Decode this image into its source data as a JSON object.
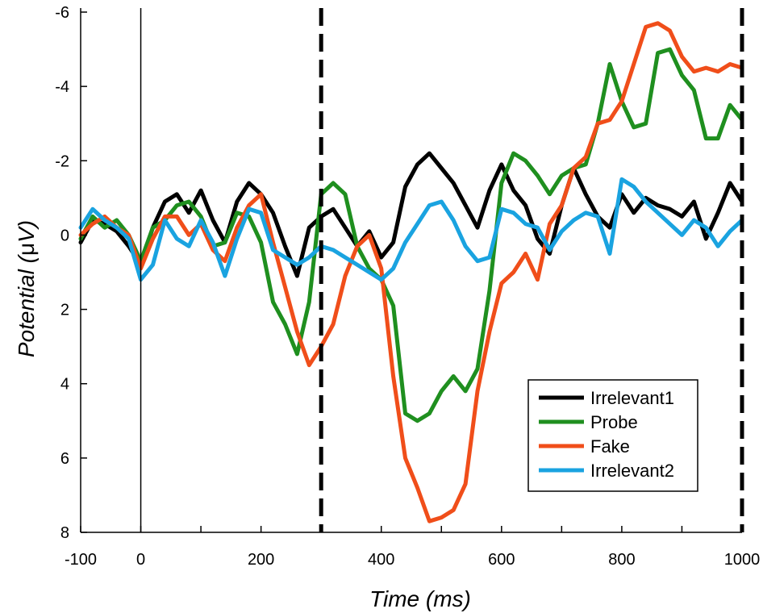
{
  "chart_data": {
    "type": "line",
    "xlabel": "Time (ms)",
    "ylabel_prefix": "Potential (",
    "ylabel_unit": "μ",
    "ylabel_suffix": "V)",
    "xlim": [
      -100,
      1000
    ],
    "ylim": [
      -6,
      8
    ],
    "y_inverted": true,
    "x_ticks": [
      -100,
      0,
      200,
      400,
      600,
      800,
      1000
    ],
    "x_minor_ticks": [
      100,
      300,
      500,
      700,
      900
    ],
    "y_ticks": [
      -6,
      -4,
      -2,
      0,
      2,
      4,
      6,
      8
    ],
    "y_tick_labels": [
      "-6",
      "-4",
      "-2",
      "0",
      "2",
      "4",
      "6",
      "8"
    ],
    "vertical_lines": [
      {
        "x": 0,
        "style": "solid"
      },
      {
        "x": 300,
        "style": "dashed"
      },
      {
        "x": 1000,
        "style": "dashed"
      }
    ],
    "legend_position": "bottom-right",
    "grid": false,
    "series": [
      {
        "name": "Irrelevant1",
        "color": "#000000",
        "points": [
          [
            -100,
            0.2
          ],
          [
            -80,
            -0.4
          ],
          [
            -60,
            -0.3
          ],
          [
            -40,
            -0.1
          ],
          [
            -20,
            0.3
          ],
          [
            0,
            0.8
          ],
          [
            20,
            -0.2
          ],
          [
            40,
            -0.9
          ],
          [
            60,
            -1.1
          ],
          [
            80,
            -0.6
          ],
          [
            100,
            -1.2
          ],
          [
            120,
            -0.4
          ],
          [
            140,
            0.2
          ],
          [
            160,
            -0.9
          ],
          [
            180,
            -1.4
          ],
          [
            200,
            -1.1
          ],
          [
            220,
            -0.6
          ],
          [
            240,
            0.3
          ],
          [
            260,
            1.1
          ],
          [
            280,
            -0.2
          ],
          [
            300,
            -0.5
          ],
          [
            320,
            -0.7
          ],
          [
            340,
            -0.2
          ],
          [
            360,
            0.3
          ],
          [
            380,
            -0.1
          ],
          [
            400,
            0.6
          ],
          [
            420,
            0.2
          ],
          [
            440,
            -1.3
          ],
          [
            460,
            -1.9
          ],
          [
            480,
            -2.2
          ],
          [
            500,
            -1.8
          ],
          [
            520,
            -1.4
          ],
          [
            540,
            -0.8
          ],
          [
            560,
            -0.2
          ],
          [
            580,
            -1.2
          ],
          [
            600,
            -1.9
          ],
          [
            620,
            -1.2
          ],
          [
            640,
            -0.8
          ],
          [
            660,
            0.1
          ],
          [
            680,
            0.5
          ],
          [
            700,
            -0.8
          ],
          [
            720,
            -1.8
          ],
          [
            740,
            -1.1
          ],
          [
            760,
            -0.5
          ],
          [
            780,
            -0.2
          ],
          [
            800,
            -1.1
          ],
          [
            820,
            -0.6
          ],
          [
            840,
            -1.0
          ],
          [
            860,
            -0.8
          ],
          [
            880,
            -0.7
          ],
          [
            900,
            -0.5
          ],
          [
            920,
            -0.9
          ],
          [
            940,
            0.1
          ],
          [
            960,
            -0.6
          ],
          [
            980,
            -1.4
          ],
          [
            1000,
            -0.9
          ]
        ]
      },
      {
        "name": "Probe",
        "color": "#1f8f1f",
        "points": [
          [
            -100,
            0.1
          ],
          [
            -80,
            -0.5
          ],
          [
            -60,
            -0.2
          ],
          [
            -40,
            -0.4
          ],
          [
            -20,
            0.0
          ],
          [
            0,
            0.7
          ],
          [
            20,
            -0.2
          ],
          [
            40,
            -0.4
          ],
          [
            60,
            -0.8
          ],
          [
            80,
            -0.9
          ],
          [
            100,
            -0.5
          ],
          [
            120,
            0.3
          ],
          [
            140,
            0.2
          ],
          [
            160,
            -0.6
          ],
          [
            180,
            -0.5
          ],
          [
            200,
            0.2
          ],
          [
            220,
            1.8
          ],
          [
            240,
            2.4
          ],
          [
            260,
            3.2
          ],
          [
            280,
            1.8
          ],
          [
            300,
            -1.1
          ],
          [
            320,
            -1.4
          ],
          [
            340,
            -1.1
          ],
          [
            360,
            0.3
          ],
          [
            380,
            0.9
          ],
          [
            400,
            1.2
          ],
          [
            420,
            1.9
          ],
          [
            440,
            4.8
          ],
          [
            460,
            5.0
          ],
          [
            480,
            4.8
          ],
          [
            500,
            4.2
          ],
          [
            520,
            3.8
          ],
          [
            540,
            4.2
          ],
          [
            560,
            3.6
          ],
          [
            580,
            1.5
          ],
          [
            600,
            -1.4
          ],
          [
            620,
            -2.2
          ],
          [
            640,
            -2.0
          ],
          [
            660,
            -1.6
          ],
          [
            680,
            -1.1
          ],
          [
            700,
            -1.6
          ],
          [
            720,
            -1.8
          ],
          [
            740,
            -1.9
          ],
          [
            760,
            -3.0
          ],
          [
            780,
            -4.6
          ],
          [
            800,
            -3.6
          ],
          [
            820,
            -2.9
          ],
          [
            840,
            -3.0
          ],
          [
            860,
            -4.9
          ],
          [
            880,
            -5.0
          ],
          [
            900,
            -4.3
          ],
          [
            920,
            -3.9
          ],
          [
            940,
            -2.6
          ],
          [
            960,
            -2.6
          ],
          [
            980,
            -3.5
          ],
          [
            1000,
            -3.1
          ]
        ]
      },
      {
        "name": "Fake",
        "color": "#f04e1a",
        "points": [
          [
            -100,
            0.0
          ],
          [
            -80,
            -0.3
          ],
          [
            -60,
            -0.5
          ],
          [
            -40,
            -0.2
          ],
          [
            -20,
            0.0
          ],
          [
            0,
            0.9
          ],
          [
            20,
            0.1
          ],
          [
            40,
            -0.5
          ],
          [
            60,
            -0.5
          ],
          [
            80,
            0.0
          ],
          [
            100,
            -0.3
          ],
          [
            120,
            0.4
          ],
          [
            140,
            0.7
          ],
          [
            160,
            -0.2
          ],
          [
            180,
            -0.8
          ],
          [
            200,
            -1.1
          ],
          [
            220,
            0.2
          ],
          [
            240,
            1.4
          ],
          [
            260,
            2.6
          ],
          [
            280,
            3.5
          ],
          [
            300,
            3.0
          ],
          [
            320,
            2.4
          ],
          [
            340,
            1.1
          ],
          [
            360,
            0.3
          ],
          [
            380,
            0.0
          ],
          [
            400,
            0.9
          ],
          [
            420,
            3.8
          ],
          [
            440,
            6.0
          ],
          [
            460,
            6.8
          ],
          [
            480,
            7.7
          ],
          [
            500,
            7.6
          ],
          [
            520,
            7.4
          ],
          [
            540,
            6.7
          ],
          [
            560,
            4.2
          ],
          [
            580,
            2.6
          ],
          [
            600,
            1.3
          ],
          [
            620,
            1.0
          ],
          [
            640,
            0.5
          ],
          [
            660,
            1.2
          ],
          [
            680,
            -0.3
          ],
          [
            700,
            -0.8
          ],
          [
            720,
            -1.8
          ],
          [
            740,
            -2.1
          ],
          [
            760,
            -3.0
          ],
          [
            780,
            -3.1
          ],
          [
            800,
            -3.6
          ],
          [
            820,
            -4.6
          ],
          [
            840,
            -5.6
          ],
          [
            860,
            -5.7
          ],
          [
            880,
            -5.5
          ],
          [
            900,
            -4.8
          ],
          [
            920,
            -4.4
          ],
          [
            940,
            -4.5
          ],
          [
            960,
            -4.4
          ],
          [
            980,
            -4.6
          ],
          [
            1000,
            -4.5
          ]
        ]
      },
      {
        "name": "Irrelevant2",
        "color": "#1aa3e0",
        "points": [
          [
            -100,
            -0.2
          ],
          [
            -80,
            -0.7
          ],
          [
            -60,
            -0.4
          ],
          [
            -40,
            -0.2
          ],
          [
            -20,
            0.1
          ],
          [
            0,
            1.2
          ],
          [
            20,
            0.8
          ],
          [
            40,
            -0.4
          ],
          [
            60,
            0.1
          ],
          [
            80,
            0.3
          ],
          [
            100,
            -0.4
          ],
          [
            120,
            0.2
          ],
          [
            140,
            1.1
          ],
          [
            160,
            0.1
          ],
          [
            180,
            -0.7
          ],
          [
            200,
            -0.6
          ],
          [
            220,
            0.4
          ],
          [
            240,
            0.6
          ],
          [
            260,
            0.8
          ],
          [
            280,
            0.6
          ],
          [
            300,
            0.3
          ],
          [
            320,
            0.4
          ],
          [
            340,
            0.6
          ],
          [
            360,
            0.8
          ],
          [
            380,
            1.0
          ],
          [
            400,
            1.2
          ],
          [
            420,
            0.9
          ],
          [
            440,
            0.2
          ],
          [
            460,
            -0.3
          ],
          [
            480,
            -0.8
          ],
          [
            500,
            -0.9
          ],
          [
            520,
            -0.4
          ],
          [
            540,
            0.3
          ],
          [
            560,
            0.7
          ],
          [
            580,
            0.6
          ],
          [
            600,
            -0.7
          ],
          [
            620,
            -0.6
          ],
          [
            640,
            -0.3
          ],
          [
            660,
            -0.2
          ],
          [
            680,
            0.4
          ],
          [
            700,
            -0.1
          ],
          [
            720,
            -0.4
          ],
          [
            740,
            -0.6
          ],
          [
            760,
            -0.5
          ],
          [
            780,
            0.5
          ],
          [
            800,
            -1.5
          ],
          [
            820,
            -1.3
          ],
          [
            840,
            -0.9
          ],
          [
            860,
            -0.6
          ],
          [
            880,
            -0.3
          ],
          [
            900,
            0.0
          ],
          [
            920,
            -0.4
          ],
          [
            940,
            -0.2
          ],
          [
            960,
            0.3
          ],
          [
            980,
            -0.1
          ],
          [
            1000,
            -0.4
          ]
        ]
      }
    ]
  }
}
